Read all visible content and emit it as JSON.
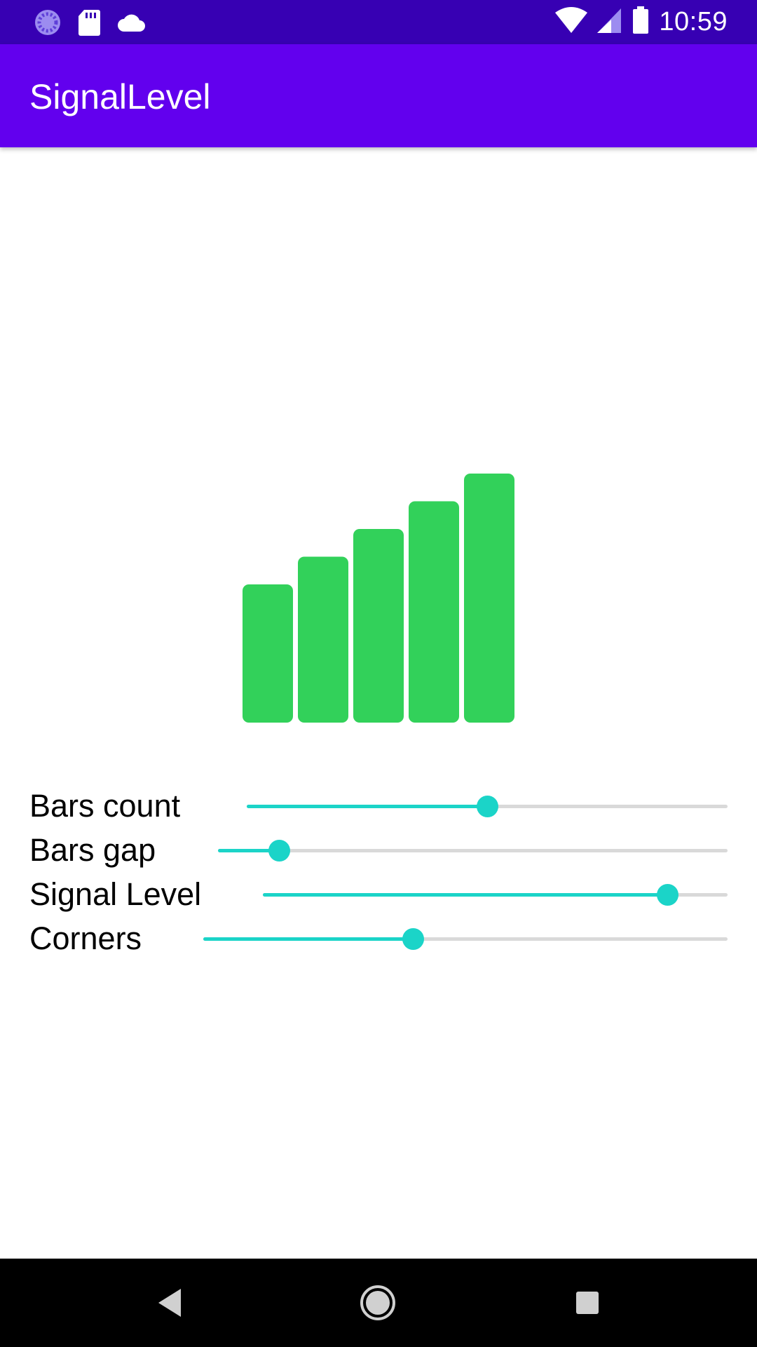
{
  "status_bar": {
    "time": "10:59",
    "left_icons": [
      "loading-icon",
      "sd-card-icon",
      "cloud-icon"
    ],
    "right_icons": [
      "wifi-icon",
      "cell-signal-icon",
      "battery-icon"
    ]
  },
  "app_bar": {
    "title": "SignalLevel",
    "color": "#6200ee"
  },
  "signal_indicator": {
    "bar_color": "#32d15a",
    "bars_count": 5,
    "signal_level": 5
  },
  "controls": {
    "accent_color": "#1bd4c8",
    "items": [
      {
        "label": "Bars count",
        "value": 0.5
      },
      {
        "label": "Bars gap",
        "value": 0.12
      },
      {
        "label": "Signal Level",
        "value": 0.87
      },
      {
        "label": "Corners",
        "value": 0.4
      }
    ]
  },
  "nav_bar": {
    "icons": [
      "back-icon",
      "home-icon",
      "recents-icon"
    ]
  }
}
